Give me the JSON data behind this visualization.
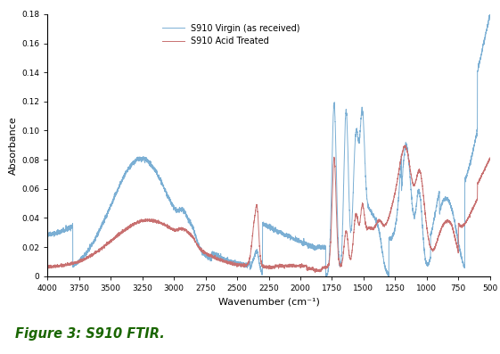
{
  "xlabel": "Wavenumber (cm⁻¹)",
  "ylabel": "Absorbance",
  "xlim": [
    4000,
    500
  ],
  "ylim": [
    0,
    0.18
  ],
  "yticks": [
    0,
    0.02,
    0.04,
    0.06,
    0.08,
    0.1,
    0.12,
    0.14,
    0.16,
    0.18
  ],
  "xticks": [
    4000,
    3750,
    3500,
    3250,
    3000,
    2750,
    2500,
    2250,
    2000,
    1750,
    1500,
    1250,
    1000,
    750,
    500
  ],
  "legend1": "S910 Virgin (as received)",
  "legend2": "S910 Acid Treated",
  "color_blue": "#7BAFD4",
  "color_red": "#C87070",
  "figure_caption": "Figure 3: S910 FTIR.",
  "figure_caption_color": "#1a6600",
  "background_color": "#ffffff",
  "figsize": [
    5.61,
    3.97
  ],
  "dpi": 100
}
